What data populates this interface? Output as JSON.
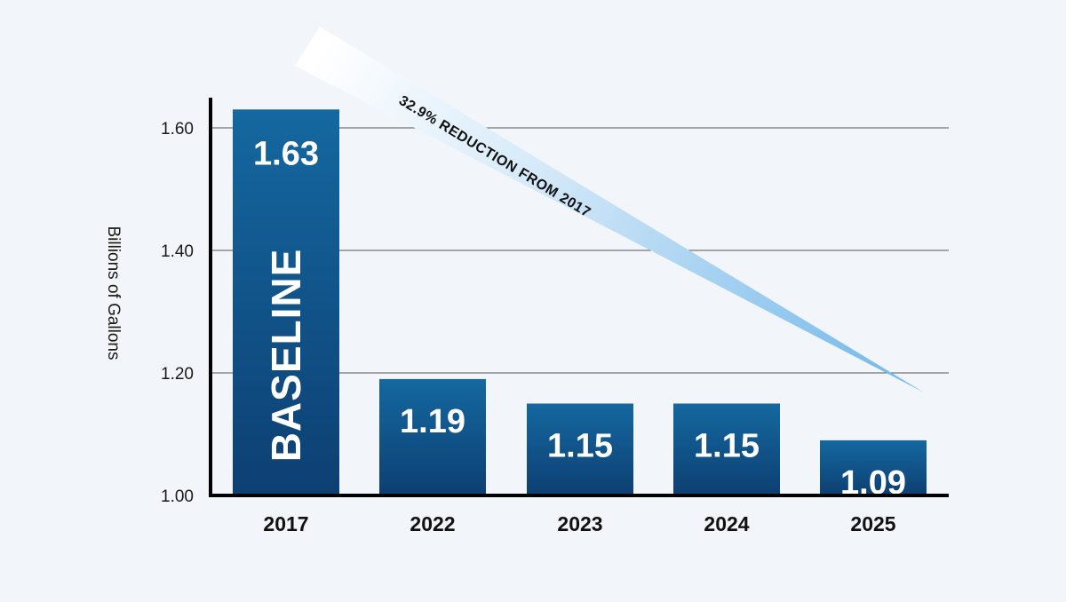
{
  "chart_data": {
    "type": "bar",
    "categories": [
      "2017",
      "2022",
      "2023",
      "2024",
      "2025"
    ],
    "values": [
      1.63,
      1.19,
      1.15,
      1.15,
      1.09
    ],
    "value_labels": [
      "1.63",
      "1.19",
      "1.15",
      "1.15",
      "1.09"
    ],
    "ylabel": "Billions of Gallons",
    "ylim": [
      1.0,
      1.65
    ],
    "yticks": [
      1.0,
      1.2,
      1.4,
      1.6
    ],
    "ytick_labels": [
      "1.00",
      "1.20",
      "1.40",
      "1.60"
    ],
    "grid": true,
    "baseline_label": "BASELINE",
    "annotation": "32.9% REDUCTION FROM 2017",
    "colors": {
      "bar_top": "#1468a0",
      "bar_bottom": "#0d3f72",
      "background": "#f2f5f9",
      "arrow_light": "#ffffff",
      "arrow_dark": "#6fb6e9"
    }
  }
}
